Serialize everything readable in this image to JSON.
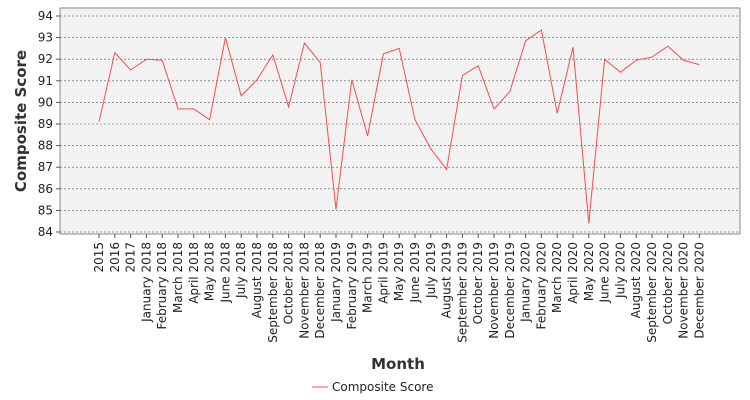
{
  "chart_data": {
    "type": "line",
    "title": "",
    "xlabel": "Month",
    "ylabel": "Composite Score",
    "ylim": [
      84,
      94
    ],
    "yticks": [
      84,
      85,
      86,
      87,
      88,
      89,
      90,
      91,
      92,
      93,
      94
    ],
    "grid": true,
    "legend_position": "bottom-center",
    "categories": [
      "2015",
      "2016",
      "2017",
      "January 2018",
      "February 2018",
      "March 2018",
      "April 2018",
      "May 2018",
      "June 2018",
      "July 2018",
      "August 2018",
      "September 2018",
      "October 2018",
      "November 2018",
      "December 2018",
      "January 2019",
      "February 2019",
      "March 2019",
      "April 2019",
      "May 2019",
      "June 2019",
      "July 2019",
      "August 2019",
      "September 2019",
      "October 2019",
      "November 2019",
      "December 2019",
      "January 2020",
      "February 2020",
      "March 2020",
      "April 2020",
      "May 2020",
      "June 2020",
      "July 2020",
      "August 2020",
      "September 2020",
      "October 2020",
      "November 2020",
      "December 2020"
    ],
    "series": [
      {
        "name": "Composite Score",
        "color": "#f05050",
        "values": [
          89.1,
          92.3,
          91.5,
          92.0,
          91.95,
          89.7,
          89.7,
          89.2,
          93.0,
          90.3,
          91.05,
          92.2,
          89.8,
          92.75,
          91.85,
          85.05,
          91.05,
          88.45,
          92.25,
          92.5,
          89.2,
          87.85,
          86.9,
          91.25,
          91.7,
          89.7,
          90.5,
          92.85,
          93.35,
          89.5,
          92.55,
          84.4,
          92.0,
          91.4,
          91.95,
          92.1,
          92.6,
          91.95,
          91.75
        ]
      }
    ]
  }
}
